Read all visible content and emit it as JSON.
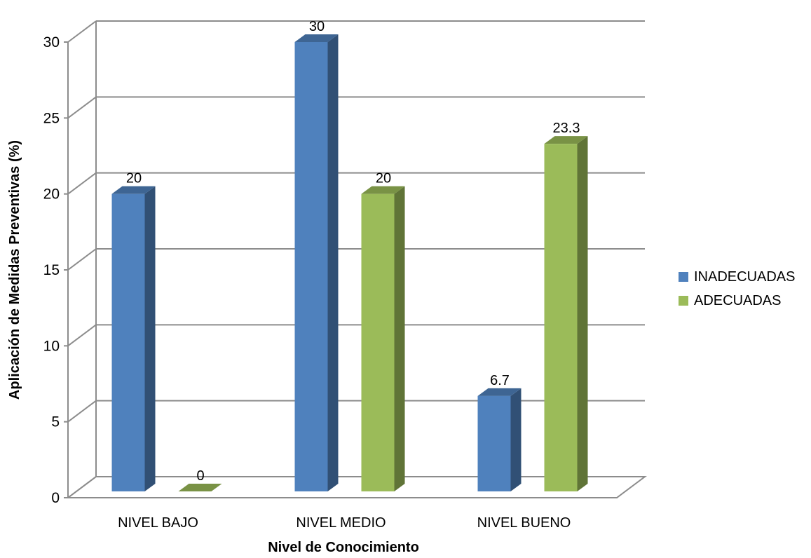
{
  "chart_data": {
    "type": "bar",
    "style": "3d-clustered-column",
    "categories": [
      "NIVEL BAJO",
      "NIVEL MEDIO",
      "NIVEL BUENO"
    ],
    "series": [
      {
        "name": "INADECUADAS",
        "values": [
          20,
          30,
          6.7
        ],
        "color": "#4F81BD"
      },
      {
        "name": "ADECUADAS",
        "values": [
          0,
          20,
          23.3
        ],
        "color": "#9BBB59"
      }
    ],
    "data_labels": [
      [
        "20",
        "30",
        "6.7"
      ],
      [
        "0",
        "20",
        "23.3"
      ]
    ],
    "title": "",
    "xlabel": "Nivel de Conocimiento",
    "ylabel": "Aplicación de Medidas Preventivas (%)",
    "ylim": [
      0,
      30
    ],
    "yticks": [
      "0",
      "5",
      "10",
      "15",
      "20",
      "25",
      "30"
    ],
    "grid": true,
    "legend_position": "right"
  }
}
